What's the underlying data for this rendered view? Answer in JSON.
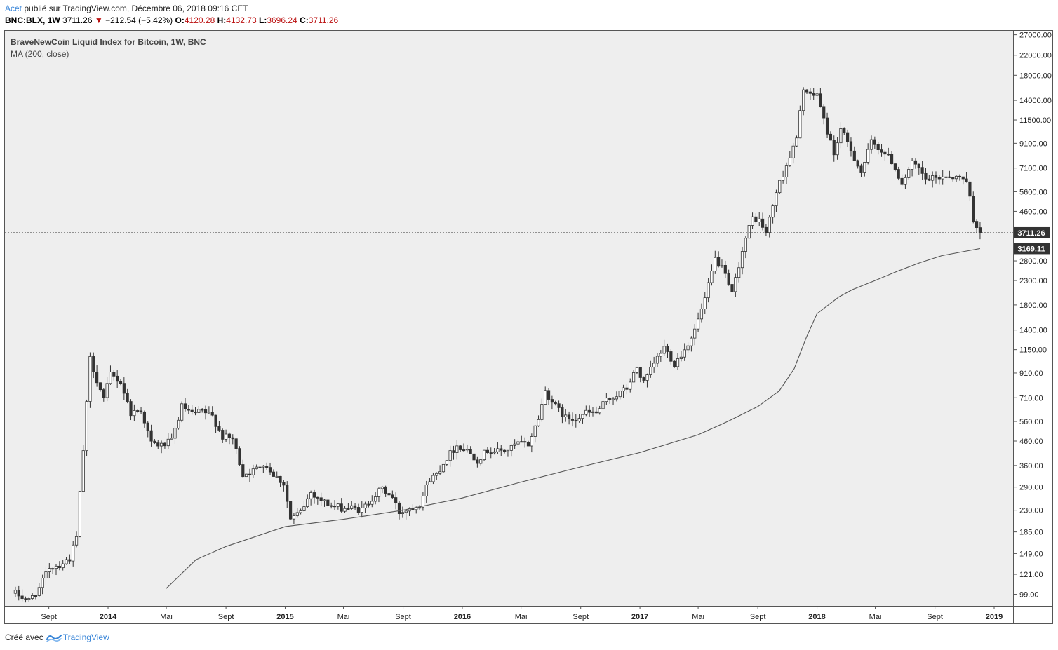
{
  "header": {
    "author": "Acet",
    "published_text": "publié sur TradingView.com, Décembre 06, 2018 09:16 CET",
    "symbol": "BNC:BLX, 1W",
    "last_price": "3711.26",
    "change_arrow": "▼",
    "change": "−212.54 (−5.42%)",
    "open_label": "O:",
    "open_value": "4120.28",
    "high_label": "H:",
    "high_value": "4132.73",
    "low_label": "L:",
    "low_value": "3696.24",
    "close_label": "C:",
    "close_value": "3711.26"
  },
  "footer": {
    "created_with": "Créé avec",
    "brand": "TradingView"
  },
  "colors": {
    "plot_bg": "#eeeeee",
    "candle": "#333333",
    "ma_line": "#555555",
    "badge_bg": "#333333",
    "badge_text": "#ffffff"
  },
  "chart_data": {
    "type": "candlestick",
    "title": "BraveNewCoin Liquid Index for Bitcoin, 1W, BNC",
    "indicator_label": "MA (200, close)",
    "y_scale": "log",
    "ylim": [
      92,
      27500
    ],
    "y_ticks": [
      "27000.00",
      "22000.00",
      "18000.00",
      "14000.00",
      "11500.00",
      "9100.00",
      "7100.00",
      "5600.00",
      "4600.00",
      "2800.00",
      "2300.00",
      "1800.00",
      "1400.00",
      "1150.00",
      "910.00",
      "710.00",
      "560.00",
      "460.00",
      "360.00",
      "290.00",
      "230.00",
      "185.00",
      "149.00",
      "121.00",
      "99.00"
    ],
    "x_ticks": [
      {
        "label": "Sept",
        "date": "2013-09-01",
        "bold": false
      },
      {
        "label": "2014",
        "date": "2014-01-01",
        "bold": true
      },
      {
        "label": "Mai",
        "date": "2014-05-01",
        "bold": false
      },
      {
        "label": "Sept",
        "date": "2014-09-01",
        "bold": false
      },
      {
        "label": "2015",
        "date": "2015-01-01",
        "bold": true
      },
      {
        "label": "Mai",
        "date": "2015-05-01",
        "bold": false
      },
      {
        "label": "Sept",
        "date": "2015-09-01",
        "bold": false
      },
      {
        "label": "2016",
        "date": "2016-01-01",
        "bold": true
      },
      {
        "label": "Mai",
        "date": "2016-05-01",
        "bold": false
      },
      {
        "label": "Sept",
        "date": "2016-09-01",
        "bold": false
      },
      {
        "label": "2017",
        "date": "2017-01-01",
        "bold": true
      },
      {
        "label": "Mai",
        "date": "2017-05-01",
        "bold": false
      },
      {
        "label": "Sept",
        "date": "2017-09-01",
        "bold": false
      },
      {
        "label": "2018",
        "date": "2018-01-01",
        "bold": true
      },
      {
        "label": "Mai",
        "date": "2018-05-01",
        "bold": false
      },
      {
        "label": "Sept",
        "date": "2018-09-01",
        "bold": false
      },
      {
        "label": "2019",
        "date": "2019-01-01",
        "bold": true
      }
    ],
    "last_price": 3711.26,
    "last_price_label": "3711.26",
    "ma_value": 3169.11,
    "ma_label": "3169.11",
    "price_path": [
      {
        "date": "2013-06-24",
        "close": 100
      },
      {
        "date": "2013-07-22",
        "close": 93
      },
      {
        "date": "2013-08-12",
        "close": 105
      },
      {
        "date": "2013-09-02",
        "close": 130
      },
      {
        "date": "2013-09-23",
        "close": 133
      },
      {
        "date": "2013-10-14",
        "close": 142
      },
      {
        "date": "2013-10-28",
        "close": 175
      },
      {
        "date": "2013-11-11",
        "close": 420
      },
      {
        "date": "2013-11-25",
        "close": 1050
      },
      {
        "date": "2013-12-09",
        "close": 850
      },
      {
        "date": "2013-12-23",
        "close": 700
      },
      {
        "date": "2014-01-06",
        "close": 900
      },
      {
        "date": "2014-01-27",
        "close": 830
      },
      {
        "date": "2014-02-17",
        "close": 610
      },
      {
        "date": "2014-03-10",
        "close": 630
      },
      {
        "date": "2014-03-31",
        "close": 450
      },
      {
        "date": "2014-04-21",
        "close": 440
      },
      {
        "date": "2014-05-12",
        "close": 460
      },
      {
        "date": "2014-06-02",
        "close": 650
      },
      {
        "date": "2014-06-23",
        "close": 600
      },
      {
        "date": "2014-07-14",
        "close": 620
      },
      {
        "date": "2014-08-04",
        "close": 590
      },
      {
        "date": "2014-08-25",
        "close": 480
      },
      {
        "date": "2014-09-15",
        "close": 470
      },
      {
        "date": "2014-10-06",
        "close": 330
      },
      {
        "date": "2014-10-27",
        "close": 340
      },
      {
        "date": "2014-11-17",
        "close": 370
      },
      {
        "date": "2014-12-08",
        "close": 330
      },
      {
        "date": "2014-12-29",
        "close": 300
      },
      {
        "date": "2015-01-12",
        "close": 210
      },
      {
        "date": "2015-02-02",
        "close": 225
      },
      {
        "date": "2015-02-23",
        "close": 275
      },
      {
        "date": "2015-03-16",
        "close": 255
      },
      {
        "date": "2015-04-06",
        "close": 240
      },
      {
        "date": "2015-04-27",
        "close": 235
      },
      {
        "date": "2015-05-18",
        "close": 235
      },
      {
        "date": "2015-06-08",
        "close": 230
      },
      {
        "date": "2015-06-29",
        "close": 260
      },
      {
        "date": "2015-07-20",
        "close": 285
      },
      {
        "date": "2015-08-10",
        "close": 260
      },
      {
        "date": "2015-08-24",
        "close": 225
      },
      {
        "date": "2015-09-14",
        "close": 235
      },
      {
        "date": "2015-10-05",
        "close": 245
      },
      {
        "date": "2015-10-26",
        "close": 315
      },
      {
        "date": "2015-11-09",
        "close": 330
      },
      {
        "date": "2015-11-30",
        "close": 390
      },
      {
        "date": "2015-12-21",
        "close": 440
      },
      {
        "date": "2016-01-11",
        "close": 420
      },
      {
        "date": "2016-02-01",
        "close": 380
      },
      {
        "date": "2016-02-22",
        "close": 420
      },
      {
        "date": "2016-03-14",
        "close": 415
      },
      {
        "date": "2016-04-04",
        "close": 420
      },
      {
        "date": "2016-04-25",
        "close": 450
      },
      {
        "date": "2016-05-16",
        "close": 445
      },
      {
        "date": "2016-06-06",
        "close": 580
      },
      {
        "date": "2016-06-20",
        "close": 760
      },
      {
        "date": "2016-07-11",
        "close": 650
      },
      {
        "date": "2016-08-01",
        "close": 580
      },
      {
        "date": "2016-08-22",
        "close": 580
      },
      {
        "date": "2016-09-12",
        "close": 610
      },
      {
        "date": "2016-10-03",
        "close": 610
      },
      {
        "date": "2016-10-24",
        "close": 690
      },
      {
        "date": "2016-11-14",
        "close": 730
      },
      {
        "date": "2016-12-05",
        "close": 780
      },
      {
        "date": "2016-12-26",
        "close": 960
      },
      {
        "date": "2017-01-09",
        "close": 820
      },
      {
        "date": "2017-01-30",
        "close": 1000
      },
      {
        "date": "2017-02-20",
        "close": 1180
      },
      {
        "date": "2017-03-13",
        "close": 1000
      },
      {
        "date": "2017-04-03",
        "close": 1150
      },
      {
        "date": "2017-04-24",
        "close": 1400
      },
      {
        "date": "2017-05-15",
        "close": 1900
      },
      {
        "date": "2017-06-05",
        "close": 2850
      },
      {
        "date": "2017-06-19",
        "close": 2600
      },
      {
        "date": "2017-07-10",
        "close": 2000
      },
      {
        "date": "2017-07-24",
        "close": 2700
      },
      {
        "date": "2017-08-07",
        "close": 3500
      },
      {
        "date": "2017-08-21",
        "close": 4300
      },
      {
        "date": "2017-09-04",
        "close": 4200
      },
      {
        "date": "2017-09-18",
        "close": 3700
      },
      {
        "date": "2017-10-09",
        "close": 5600
      },
      {
        "date": "2017-10-30",
        "close": 7300
      },
      {
        "date": "2017-11-20",
        "close": 9500
      },
      {
        "date": "2017-12-04",
        "close": 16000
      },
      {
        "date": "2017-12-18",
        "close": 14500
      },
      {
        "date": "2018-01-01",
        "close": 15000
      },
      {
        "date": "2018-01-15",
        "close": 11500
      },
      {
        "date": "2018-02-05",
        "close": 8200
      },
      {
        "date": "2018-02-19",
        "close": 10500
      },
      {
        "date": "2018-03-12",
        "close": 8500
      },
      {
        "date": "2018-04-02",
        "close": 6800
      },
      {
        "date": "2018-04-23",
        "close": 9200
      },
      {
        "date": "2018-05-14",
        "close": 8500
      },
      {
        "date": "2018-06-04",
        "close": 7600
      },
      {
        "date": "2018-06-25",
        "close": 6100
      },
      {
        "date": "2018-07-16",
        "close": 7400
      },
      {
        "date": "2018-07-30",
        "close": 7000
      },
      {
        "date": "2018-08-13",
        "close": 6300
      },
      {
        "date": "2018-09-03",
        "close": 6400
      },
      {
        "date": "2018-09-24",
        "close": 6600
      },
      {
        "date": "2018-10-15",
        "close": 6450
      },
      {
        "date": "2018-11-05",
        "close": 6350
      },
      {
        "date": "2018-11-19",
        "close": 4300
      },
      {
        "date": "2018-12-03",
        "close": 3711.26
      }
    ],
    "ma_path": [
      {
        "date": "2014-05-01",
        "value": 105
      },
      {
        "date": "2014-07-01",
        "value": 140
      },
      {
        "date": "2014-09-01",
        "value": 160
      },
      {
        "date": "2015-01-01",
        "value": 195
      },
      {
        "date": "2015-05-01",
        "value": 210
      },
      {
        "date": "2015-09-01",
        "value": 230
      },
      {
        "date": "2016-01-01",
        "value": 260
      },
      {
        "date": "2016-05-01",
        "value": 305
      },
      {
        "date": "2016-09-01",
        "value": 355
      },
      {
        "date": "2017-01-01",
        "value": 410
      },
      {
        "date": "2017-05-01",
        "value": 490
      },
      {
        "date": "2017-07-01",
        "value": 560
      },
      {
        "date": "2017-09-01",
        "value": 650
      },
      {
        "date": "2017-10-15",
        "value": 760
      },
      {
        "date": "2017-11-15",
        "value": 950
      },
      {
        "date": "2017-12-10",
        "value": 1300
      },
      {
        "date": "2018-01-01",
        "value": 1650
      },
      {
        "date": "2018-02-15",
        "value": 1950
      },
      {
        "date": "2018-03-15",
        "value": 2100
      },
      {
        "date": "2018-05-01",
        "value": 2300
      },
      {
        "date": "2018-06-15",
        "value": 2520
      },
      {
        "date": "2018-08-01",
        "value": 2750
      },
      {
        "date": "2018-09-15",
        "value": 2950
      },
      {
        "date": "2018-11-01",
        "value": 3080
      },
      {
        "date": "2018-12-03",
        "value": 3169.11
      }
    ]
  }
}
